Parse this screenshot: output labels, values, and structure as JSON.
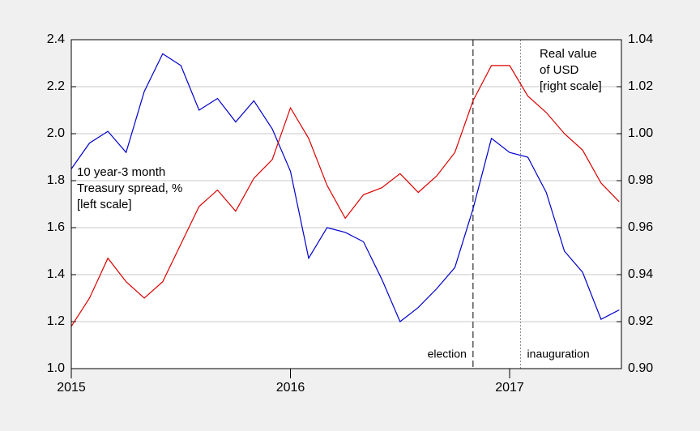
{
  "chart_data": {
    "type": "line",
    "x": [
      2015,
      2015.083,
      2015.167,
      2015.25,
      2015.333,
      2015.417,
      2015.5,
      2015.583,
      2015.667,
      2015.75,
      2015.833,
      2015.917,
      2016,
      2016.083,
      2016.167,
      2016.25,
      2016.333,
      2016.417,
      2016.5,
      2016.583,
      2016.667,
      2016.75,
      2016.833,
      2016.917,
      2017,
      2017.083,
      2017.167,
      2017.25,
      2017.333,
      2017.417,
      2017.5
    ],
    "xlim": [
      2015,
      2017.51
    ],
    "xticks": [
      2015,
      2016,
      2017
    ],
    "ylim": [
      1.0,
      2.4
    ],
    "yticks": [
      {
        "value": 1.0,
        "label": "1.0"
      },
      1.2,
      1.4,
      1.6,
      1.8,
      {
        "value": 2.0,
        "label": "2.0"
      },
      2.2,
      2.4
    ],
    "y2lim": [
      0.9,
      1.04
    ],
    "y2ticks": [
      {
        "value": 0.9,
        "label": "0.90"
      },
      0.92,
      0.94,
      0.96,
      0.98,
      {
        "value": 1.0,
        "label": "1.00"
      },
      1.02,
      1.04
    ],
    "grid": true,
    "series": [
      {
        "label": [
          "10 year-3 month",
          "Treasury spread, %",
          "[left scale]"
        ],
        "color": "#0000cc",
        "axis": "y",
        "values": [
          1.85,
          1.96,
          2.01,
          1.92,
          2.18,
          2.34,
          2.29,
          2.1,
          2.15,
          2.05,
          2.14,
          2.02,
          1.84,
          1.47,
          1.6,
          1.58,
          1.54,
          1.38,
          1.2,
          1.26,
          1.34,
          1.43,
          1.68,
          1.98,
          1.92,
          1.9,
          1.75,
          1.5,
          1.41,
          1.21,
          1.25
        ]
      },
      {
        "label": [
          "Real value",
          "of USD",
          "[right scale]"
        ],
        "color": "#dd0000",
        "axis": "y2",
        "values": [
          0.918,
          0.93,
          0.947,
          0.937,
          0.93,
          0.937,
          0.953,
          0.969,
          0.976,
          0.967,
          0.981,
          0.989,
          1.011,
          0.998,
          0.978,
          0.964,
          0.974,
          0.977,
          0.983,
          0.975,
          0.982,
          0.992,
          1.014,
          1.029,
          1.029,
          1.016,
          1.009,
          1.0,
          0.993,
          0.979,
          0.971
        ]
      }
    ],
    "vlines": [
      {
        "x": 2016.833,
        "label": "election",
        "color": "#000000",
        "style": "dashed"
      },
      {
        "x": 2017.05,
        "label": "inauguration",
        "color": "#888888",
        "style": "dotted"
      }
    ]
  }
}
